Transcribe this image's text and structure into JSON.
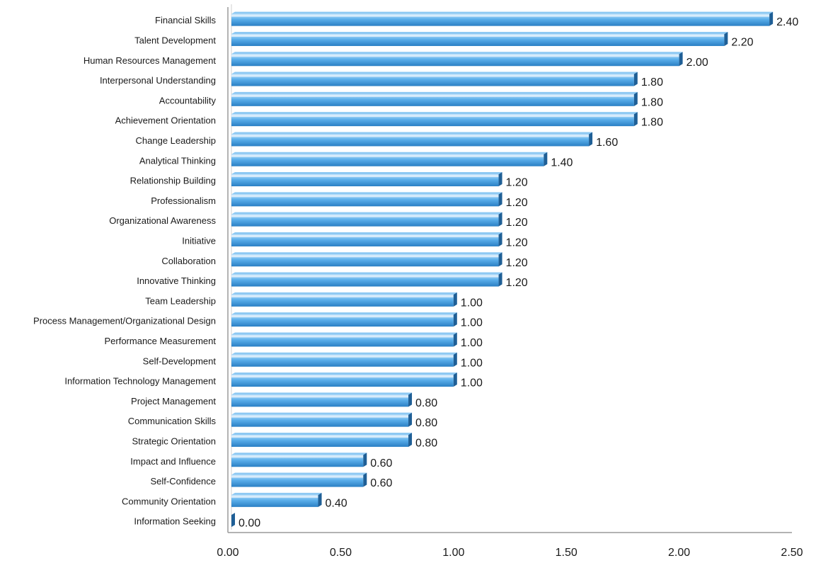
{
  "chart_data": {
    "type": "bar",
    "orientation": "horizontal",
    "categories": [
      "Financial Skills",
      "Talent Development",
      "Human Resources Management",
      "Interpersonal Understanding",
      "Accountability",
      "Achievement Orientation",
      "Change Leadership",
      "Analytical Thinking",
      "Relationship Building",
      "Professionalism",
      "Organizational Awareness",
      "Initiative",
      "Collaboration",
      "Innovative Thinking",
      "Team Leadership",
      "Process Management/Organizational Design",
      "Performance Measurement",
      "Self-Development",
      "Information Technology Management",
      "Project Management",
      "Communication Skills",
      "Strategic Orientation",
      "Impact and Influence",
      "Self-Confidence",
      "Community Orientation",
      "Information Seeking"
    ],
    "values": [
      2.4,
      2.2,
      2.0,
      1.8,
      1.8,
      1.8,
      1.6,
      1.4,
      1.2,
      1.2,
      1.2,
      1.2,
      1.2,
      1.2,
      1.0,
      1.0,
      1.0,
      1.0,
      1.0,
      0.8,
      0.8,
      0.8,
      0.6,
      0.6,
      0.4,
      0.0
    ],
    "value_labels": [
      "2.40",
      "2.20",
      "2.00",
      "1.80",
      "1.80",
      "1.80",
      "1.60",
      "1.40",
      "1.20",
      "1.20",
      "1.20",
      "1.20",
      "1.20",
      "1.20",
      "1.00",
      "1.00",
      "1.00",
      "1.00",
      "1.00",
      "0.80",
      "0.80",
      "0.80",
      "0.60",
      "0.60",
      "0.40",
      "0.00"
    ],
    "x_ticks": [
      "0.00",
      "0.50",
      "1.00",
      "1.50",
      "2.00",
      "2.50"
    ],
    "xlim": [
      0,
      2.5
    ],
    "title": "",
    "xlabel": "",
    "ylabel": "",
    "grid": false,
    "legend": "none",
    "colors": {
      "bar_light": "#bfe2fb",
      "bar_mid": "#5aaeea",
      "bar_dark": "#2a7fc4",
      "bar_end": "#1f5f96",
      "axis": "#9a9a9a"
    }
  }
}
